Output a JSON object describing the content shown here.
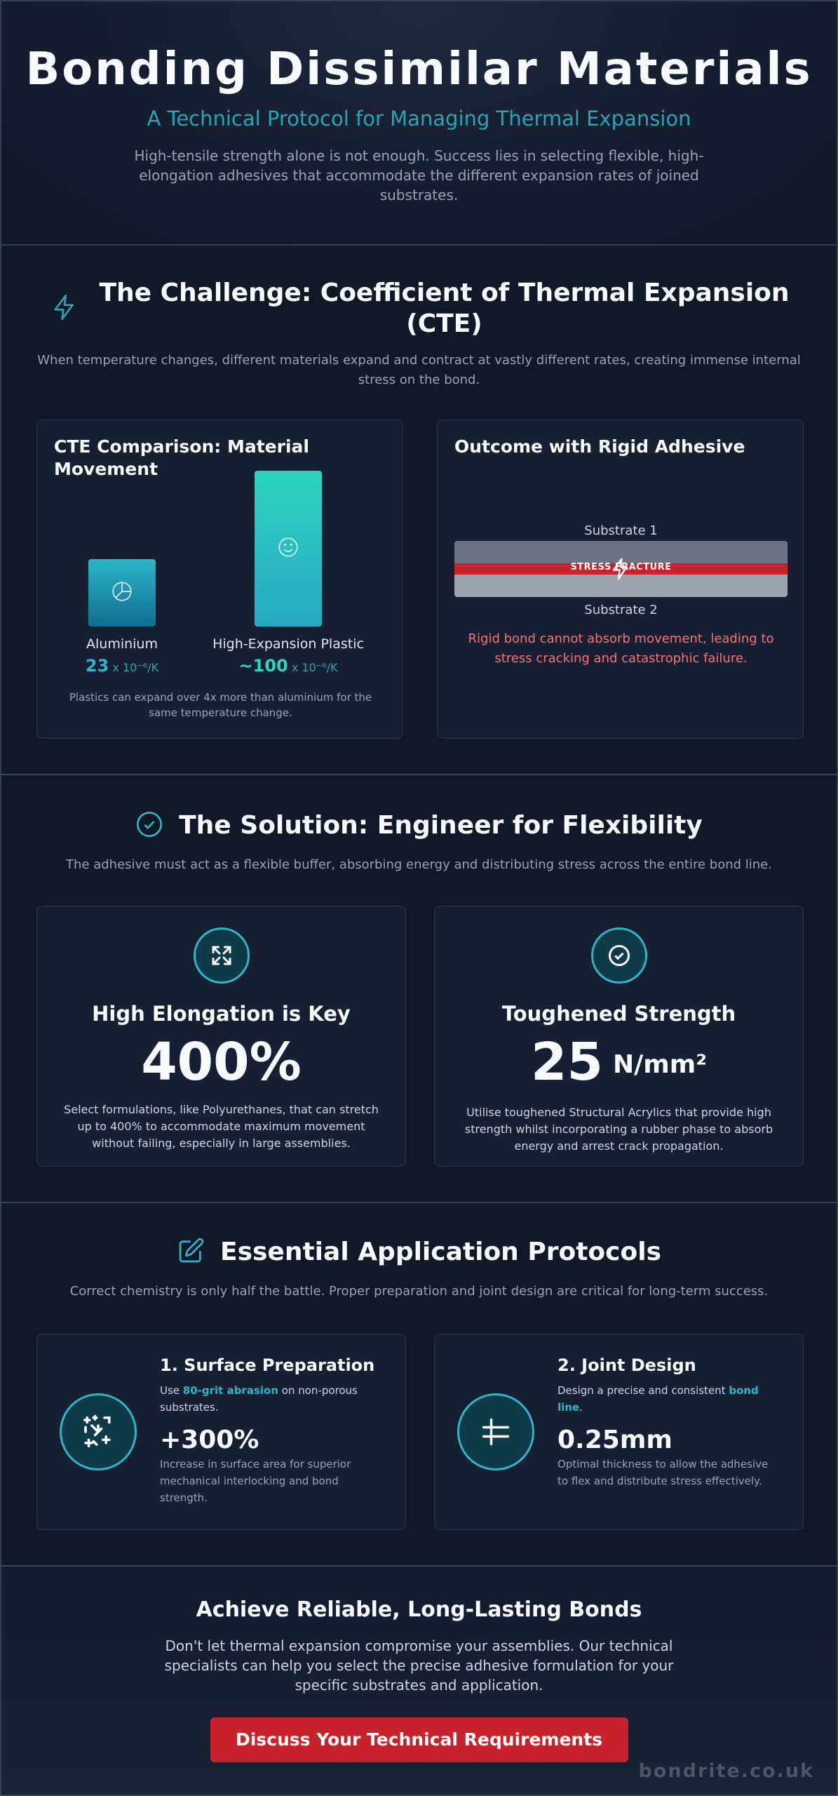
{
  "hero": {
    "title": "Bonding Dissimilar Materials",
    "subtitle": "A Technical Protocol for Managing Thermal Expansion",
    "intro": "High-tensile strength alone is not enough. Success lies in selecting flexible, high-elongation adhesives that accommodate the different expansion rates of joined substrates."
  },
  "challenge": {
    "icon": "lightning-icon",
    "title": "The Challenge: Coefficient of Thermal Expansion (CTE)",
    "subtitle": "When temperature changes, different materials expand and contract at vastly different rates, creating immense internal stress on the bond.",
    "cte_card": {
      "title": "CTE Comparison: Material Movement",
      "materials": [
        {
          "name": "Aluminium",
          "value": "23",
          "unit": "x 10⁻⁶/K",
          "icon": "pie-chart-icon"
        },
        {
          "name": "High-Expansion Plastic",
          "value": "~100",
          "unit": "x 10⁻⁶/K",
          "icon": "smile-icon"
        }
      ],
      "note": "Plastics can expand over 4x more than aluminium for the same temperature change."
    },
    "outcome_card": {
      "title": "Outcome with Rigid Adhesive",
      "substrate_top": "Substrate 1",
      "substrate_bottom": "Substrate 2",
      "fracture_label": "STRESS FRACTURE",
      "text": "Rigid bond cannot absorb movement, leading to stress cracking and catastrophic failure."
    }
  },
  "solution": {
    "icon": "check-circle-icon",
    "title": "The Solution: Engineer for Flexibility",
    "subtitle": "The adhesive must act as a flexible buffer, absorbing energy and distributing stress across the entire bond line.",
    "cards": [
      {
        "icon": "expand-icon",
        "title": "High Elongation is Key",
        "stat": "400%",
        "unit": "",
        "text": "Select formulations, like Polyurethanes, that can stretch up to 400% to accommodate maximum movement without failing, especially in large assemblies."
      },
      {
        "icon": "shield-check-icon",
        "title": "Toughened Strength",
        "stat": "25",
        "unit": "N/mm²",
        "text": "Utilise toughened Structural Acrylics that provide high strength whilst incorporating a rubber phase to absorb energy and arrest crack propagation."
      }
    ]
  },
  "protocols": {
    "icon": "edit-icon",
    "title": "Essential Application Protocols",
    "subtitle": "Correct chemistry is only half the battle. Proper preparation and joint design are critical for long-term success.",
    "cards": [
      {
        "icon": "sparkles-icon",
        "title": "1. Surface Preparation",
        "desc_pre": "Use ",
        "desc_bold": "80-grit abrasion",
        "desc_post": " on non-porous substrates.",
        "stat": "+300%",
        "note": "Increase in surface area for superior mechanical interlocking and bond strength."
      },
      {
        "icon": "bond-line-icon",
        "title": "2. Joint Design",
        "desc_pre": "Design a precise and consistent ",
        "desc_bold": "bond line",
        "desc_post": ".",
        "stat": "0.25mm",
        "note": "Optimal thickness to allow the adhesive to flex and distribute stress effectively."
      }
    ]
  },
  "cta": {
    "title": "Achieve Reliable, Long-Lasting Bonds",
    "text": "Don't let thermal expansion compromise your assemblies. Our technical specialists can help you select the precise adhesive formulation for your specific substrates and application.",
    "button": "Discuss Your Technical Requirements",
    "brand": "bondrite.co.uk"
  },
  "colors": {
    "accent": "#2db6c8",
    "accent_teal": "#2dd4bf",
    "danger": "#c8232c",
    "danger_text": "#f87171",
    "background": "#0f172a",
    "card": "#172033"
  }
}
